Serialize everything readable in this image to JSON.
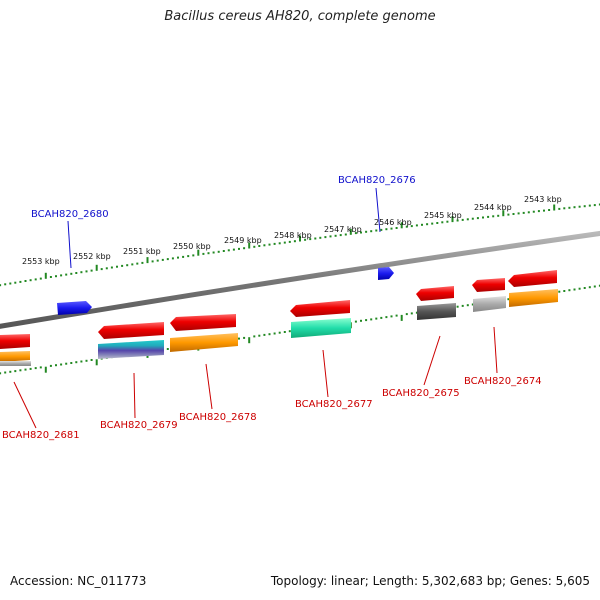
{
  "title": "Bacillus cereus AH820, complete genome",
  "footer": {
    "accession": "Accession: NC_011773",
    "summary": "Topology: linear; Length: 5,302,683 bp; Genes: 5,605"
  },
  "colors": {
    "backbone": "#7a7a7a",
    "tick": "#228822",
    "forward_label": "#1010cc",
    "reverse_label": "#cc0000",
    "forward_gene": "#1a1aee",
    "reverse_gene": "#ee1111"
  },
  "scale_labels": [
    "2553 kbp",
    "2552 kbp",
    "2551 kbp",
    "2550 kbp",
    "2549 kbp",
    "2548 kbp",
    "2547 kbp",
    "2546 kbp",
    "2545 kbp",
    "2544 kbp",
    "2543 kbp"
  ],
  "forward_genes": [
    {
      "label": "BCAH820_2680",
      "icon": "forward-gene-arrow"
    },
    {
      "label": "BCAH820_2676",
      "icon": "forward-gene-arrow"
    }
  ],
  "reverse_genes": [
    {
      "label": "BCAH820_2681",
      "icon": "reverse-gene-arrow"
    },
    {
      "label": "BCAH820_2679",
      "icon": "reverse-gene-arrow"
    },
    {
      "label": "BCAH820_2678",
      "icon": "reverse-gene-arrow"
    },
    {
      "label": "BCAH820_2677",
      "icon": "reverse-gene-arrow"
    },
    {
      "label": "BCAH820_2675",
      "icon": "reverse-gene-arrow"
    },
    {
      "label": "BCAH820_2674",
      "icon": "reverse-gene-arrow"
    }
  ]
}
